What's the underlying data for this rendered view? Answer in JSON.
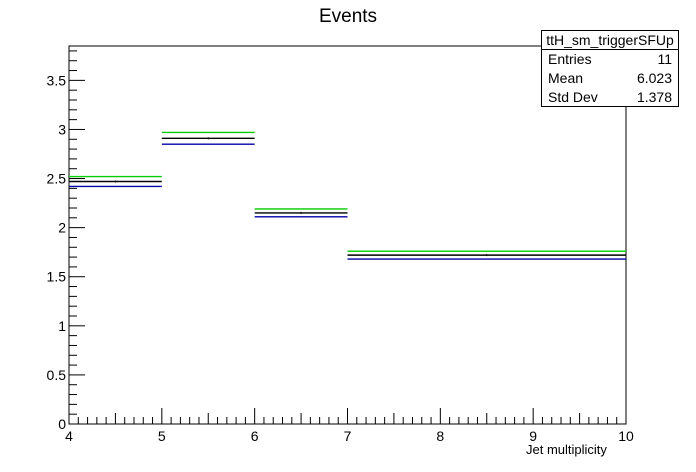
{
  "chart_data": {
    "type": "bar",
    "title": "Events",
    "xlabel": "Jet multiplicity",
    "ylabel": "",
    "xlim": [
      4,
      10
    ],
    "ylim": [
      0,
      3.85
    ],
    "x_ticks": [
      "4",
      "5",
      "6",
      "7",
      "8",
      "9",
      "10"
    ],
    "y_ticks": [
      "0",
      "0.5",
      "1",
      "1.5",
      "2",
      "2.5",
      "3",
      "3.5"
    ],
    "bins": [
      [
        4,
        5
      ],
      [
        5,
        6
      ],
      [
        6,
        7
      ],
      [
        7,
        10
      ]
    ],
    "series": [
      {
        "color": "#00cc00",
        "values": [
          2.52,
          2.97,
          2.19,
          1.76
        ]
      },
      {
        "color": "#000000",
        "values": [
          2.47,
          2.91,
          2.15,
          1.72
        ]
      },
      {
        "color": "#0000aa",
        "values": [
          2.42,
          2.85,
          2.11,
          1.68
        ]
      }
    ],
    "grid": false,
    "legend": "none"
  },
  "stats": {
    "name": "ttH_sm_triggerSFUp",
    "entries_label": "Entries",
    "entries": "11",
    "mean_label": "Mean",
    "mean": "6.023",
    "std_label": "Std Dev",
    "std": "1.378"
  }
}
